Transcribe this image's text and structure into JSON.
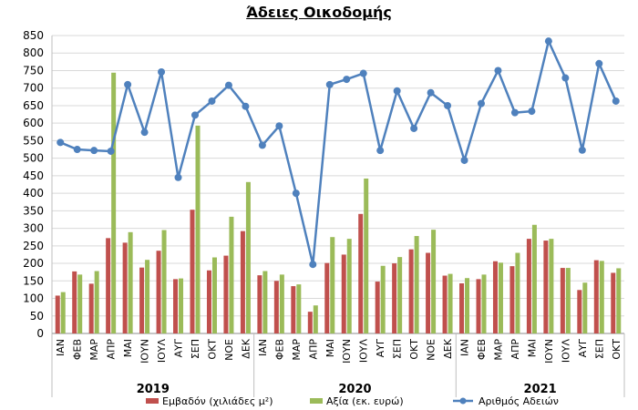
{
  "chart_data": {
    "type": "bar",
    "title": "Άδειες Οικοδομής",
    "ylim": [
      0,
      850
    ],
    "ytick_step": 50,
    "grid": true,
    "legend_position": "bottom",
    "categories": [
      "ΙΑΝ",
      "ΦΕΒ",
      "ΜΑΡ",
      "ΑΠΡ",
      "ΜΑΙ",
      "ΙΟΥΝ",
      "ΙΟΥΛ",
      "ΑΥΓ",
      "ΣΕΠ",
      "ΟΚΤ",
      "ΝΟΕ",
      "ΔΕΚ",
      "ΙΑΝ",
      "ΦΕΒ",
      "ΜΑΡ",
      "ΑΠΡ",
      "ΜΑΙ",
      "ΙΟΥΝ",
      "ΙΟΥΛ",
      "ΑΥΓ",
      "ΣΕΠ",
      "ΟΚΤ",
      "ΝΟΕ",
      "ΔΕΚ",
      "ΙΑΝ",
      "ΦΕΒ",
      "ΜΑΡ",
      "ΑΠΡ",
      "ΜΑΙ",
      "ΙΟΥΝ",
      "ΙΟΥΛ",
      "ΑΥΓ",
      "ΣΕΠ",
      "ΟΚΤ"
    ],
    "groups": [
      {
        "label": "2019",
        "count": 12
      },
      {
        "label": "2020",
        "count": 12
      },
      {
        "label": "2021",
        "count": 10
      }
    ],
    "series": [
      {
        "name": "Εμβαδόν (χιλιάδες μ²)",
        "kind": "bar",
        "color": "#c0504d",
        "values": [
          108,
          177,
          142,
          272,
          259,
          188,
          236,
          155,
          353,
          180,
          222,
          292,
          166,
          150,
          135,
          62,
          201,
          225,
          341,
          148,
          200,
          240,
          230,
          165,
          143,
          155,
          206,
          192,
          270,
          265,
          187,
          124,
          209,
          173
        ]
      },
      {
        "name": "Αξία (εκ. ευρώ)",
        "kind": "bar",
        "color": "#9bbb59",
        "values": [
          118,
          168,
          178,
          744,
          289,
          210,
          295,
          157,
          593,
          217,
          333,
          432,
          178,
          168,
          140,
          80,
          275,
          270,
          442,
          193,
          218,
          278,
          296,
          170,
          158,
          168,
          202,
          230,
          310,
          270,
          187,
          145,
          207,
          186
        ]
      },
      {
        "name": "Αριθμός Αδειών",
        "kind": "line",
        "color": "#4f81bd",
        "values": [
          545,
          525,
          522,
          520,
          710,
          574,
          746,
          445,
          623,
          663,
          708,
          648,
          537,
          592,
          400,
          197,
          710,
          725,
          742,
          522,
          692,
          585,
          687,
          650,
          494,
          656,
          750,
          630,
          634,
          834,
          729,
          523,
          770,
          663
        ]
      }
    ]
  }
}
